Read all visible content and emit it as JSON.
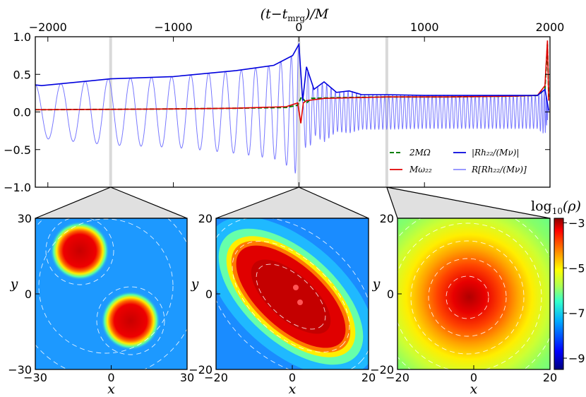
{
  "chart_data": [
    {
      "type": "line",
      "title": "",
      "xlabel": "(t−t_mrg)/M",
      "xlabel_text": "(t−t",
      "xlabel_sub": "mrg",
      "xlabel_tail": ")/M",
      "xlim": [
        -2100,
        2000
      ],
      "ylim": [
        -1.0,
        1.0
      ],
      "x_ticks": [
        -2000,
        -1000,
        0,
        1000,
        2000
      ],
      "x_tick_labels": [
        "−2000",
        "−1000",
        "0",
        "1000",
        "2000"
      ],
      "y_ticks": [
        -1.0,
        -0.5,
        0.0,
        0.5,
        1.0
      ],
      "y_tick_labels": [
        "−1.0",
        "−0.5",
        "0.0",
        "0.5",
        "1.0"
      ],
      "vertical_markers": [
        -1500,
        0,
        700
      ],
      "legend_position": "lower-right",
      "series": [
        {
          "name": "2MΩ",
          "color": "#007f00",
          "style": "dashed",
          "x": [
            -2100,
            -1500,
            -1000,
            -500,
            -100,
            -10,
            20,
            60,
            100,
            300,
            700,
            1200,
            1700,
            1900,
            1960,
            1980,
            1990
          ],
          "values": [
            0.03,
            0.035,
            0.04,
            0.05,
            0.06,
            0.09,
            0.2,
            0.12,
            0.18,
            0.19,
            0.2,
            0.2,
            0.21,
            0.22,
            0.3,
            0.9,
            0.2
          ]
        },
        {
          "name": "Mω₂₂",
          "color": "#e00000",
          "style": "solid",
          "x": [
            -2100,
            -1500,
            -1000,
            -500,
            -100,
            -10,
            15,
            35,
            60,
            200,
            700,
            1200,
            1700,
            1900,
            1960,
            1980,
            1990
          ],
          "values": [
            0.03,
            0.035,
            0.04,
            0.05,
            0.07,
            0.12,
            -0.15,
            0.12,
            0.15,
            0.18,
            0.2,
            0.2,
            0.21,
            0.22,
            0.35,
            0.95,
            0.15
          ]
        },
        {
          "name": "|Rh₂₂/(Mν)|",
          "color": "#0000dd",
          "style": "solid",
          "x": [
            -2100,
            -2050,
            -1500,
            -1000,
            -500,
            -200,
            -50,
            0,
            30,
            60,
            120,
            200,
            300,
            400,
            500,
            700,
            1000,
            1500,
            1900,
            1960,
            1990
          ],
          "values": [
            0.36,
            0.35,
            0.44,
            0.47,
            0.55,
            0.62,
            0.75,
            0.9,
            0.15,
            0.6,
            0.3,
            0.4,
            0.26,
            0.28,
            0.23,
            0.23,
            0.22,
            0.22,
            0.22,
            0.3,
            0.02
          ]
        },
        {
          "name": "R[Rh₂₂/(Mν)]",
          "color": "#7878ff",
          "style": "solid",
          "note": "oscillatory real part bounded by the amplitude envelope"
        }
      ]
    },
    {
      "type": "heatmap",
      "name": "density-panel-left",
      "xlabel": "x",
      "ylabel": "y",
      "xlim": [
        -30,
        30
      ],
      "ylim": [
        -30,
        30
      ],
      "x_tick_labels": [
        "−30",
        "0",
        "30"
      ],
      "y_tick_labels": [
        "30",
        "0",
        "−30"
      ],
      "time_marker": -1500
    },
    {
      "type": "heatmap",
      "name": "density-panel-middle",
      "xlabel": "x",
      "ylabel": "y",
      "xlim": [
        -21,
        21
      ],
      "ylim": [
        -21,
        21
      ],
      "x_tick_labels": [
        "−20",
        "0",
        "20"
      ],
      "y_tick_labels": [
        "20",
        "0",
        "−20"
      ],
      "time_marker": 0
    },
    {
      "type": "heatmap",
      "name": "density-panel-right",
      "xlabel": "x",
      "ylabel": "y",
      "xlim": [
        -20,
        20
      ],
      "ylim": [
        -20,
        20
      ],
      "x_tick_labels": [
        "−20",
        "0",
        "20"
      ],
      "y_tick_labels": [
        "20",
        "0",
        "−20"
      ],
      "time_marker": 700
    }
  ],
  "colorbar": {
    "label": "log₁₀(ρ)",
    "label_main": "log",
    "label_sub": "10",
    "label_tail": "(ρ)",
    "range": [
      -9.5,
      -2.8
    ],
    "tick_labels": [
      "−3",
      "−5",
      "−7",
      "−9"
    ],
    "tick_values": [
      -3,
      -5,
      -7,
      -9
    ]
  },
  "colors": {
    "frame": "#000000",
    "marker_band": "#d9d9d9",
    "zoom_fill": "#e0e0e0"
  }
}
